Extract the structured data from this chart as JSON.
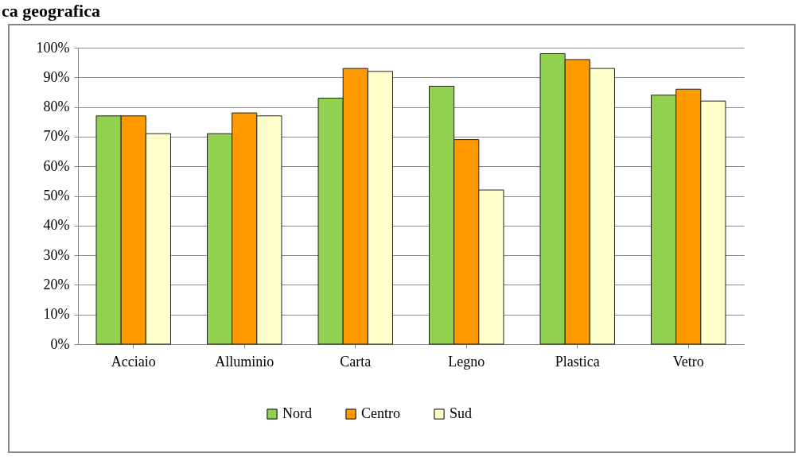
{
  "chart_data": {
    "type": "bar",
    "title": "ca geografica",
    "categories": [
      "Acciaio",
      "Alluminio",
      "Carta",
      "Legno",
      "Plastica",
      "Vetro"
    ],
    "series": [
      {
        "name": "Nord",
        "color": "#92d050",
        "values": [
          77,
          71,
          83,
          87,
          98,
          84
        ]
      },
      {
        "name": "Centro",
        "color": "#ff9900",
        "values": [
          77,
          78,
          93,
          69,
          96,
          86
        ]
      },
      {
        "name": "Sud",
        "color": "#ffffcc",
        "values": [
          71,
          77,
          92,
          52,
          93,
          82
        ]
      }
    ],
    "ylim": [
      0,
      100
    ],
    "yticks": [
      {
        "value": 0,
        "label": "0%"
      },
      {
        "value": 10,
        "label": "10%"
      },
      {
        "value": 20,
        "label": "20%"
      },
      {
        "value": 30,
        "label": "30%"
      },
      {
        "value": 40,
        "label": "40%"
      },
      {
        "value": 50,
        "label": "50%"
      },
      {
        "value": 60,
        "label": "60%"
      },
      {
        "value": 70,
        "label": "70%"
      },
      {
        "value": 80,
        "label": "80%"
      },
      {
        "value": 90,
        "label": "90%"
      },
      {
        "value": 100,
        "label": "100%"
      }
    ],
    "grid": "y",
    "legend": "bottom"
  }
}
